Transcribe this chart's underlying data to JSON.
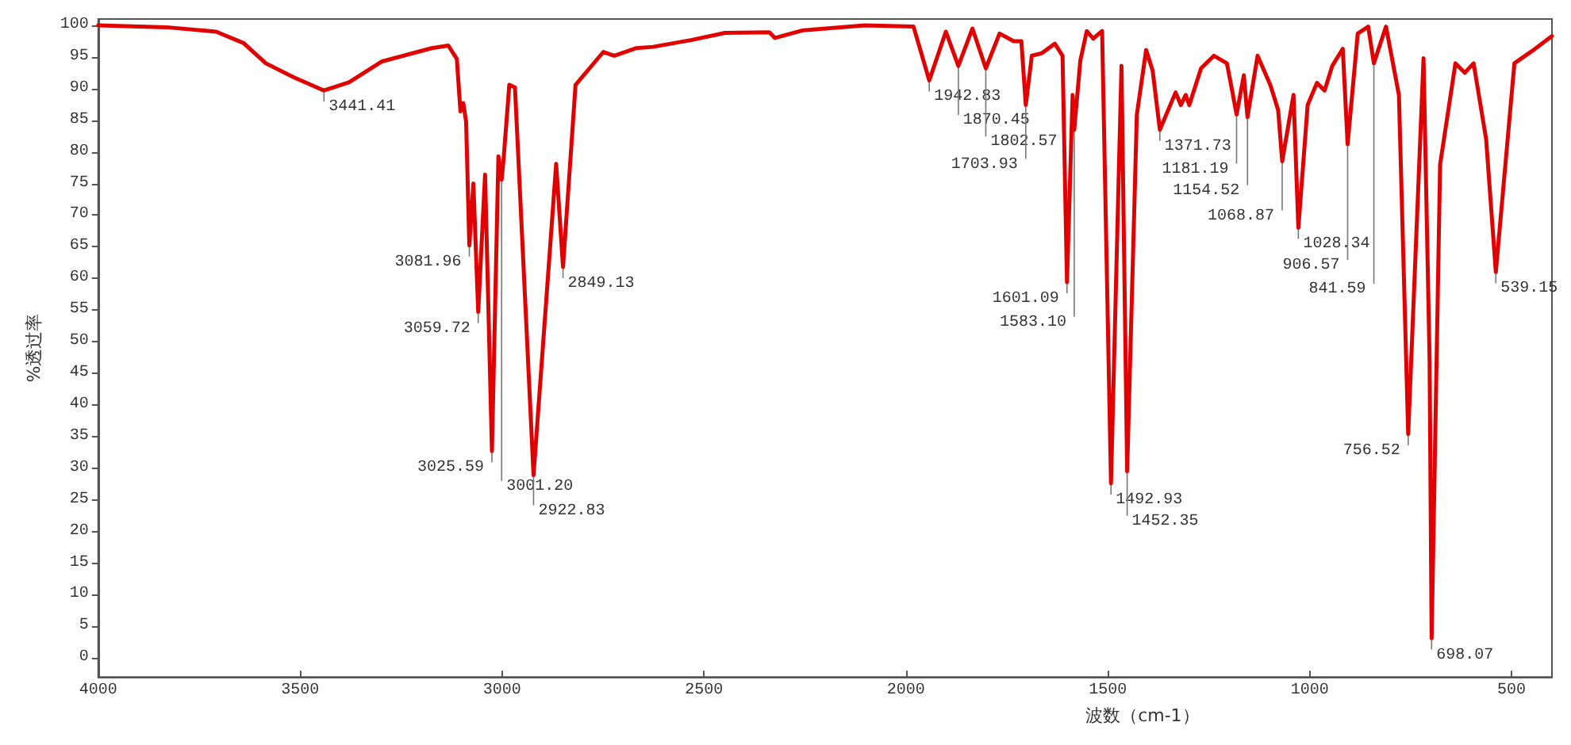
{
  "chart_data": {
    "type": "line",
    "xlabel": "波数（cm-1）",
    "ylabel": "%透过率",
    "xlim": [
      4000,
      400
    ],
    "ylim": [
      -3,
      101
    ],
    "xticks": [
      4000,
      3500,
      3000,
      2500,
      2000,
      1500,
      1000,
      500
    ],
    "yticks": [
      0,
      5,
      10,
      15,
      20,
      25,
      30,
      35,
      40,
      45,
      50,
      55,
      60,
      65,
      70,
      75,
      80,
      85,
      90,
      95,
      100
    ],
    "grid": false,
    "marker": "none",
    "line_style": "solid",
    "x": [
      4000,
      3831,
      3708,
      3640,
      3585,
      3516,
      3441,
      3379,
      3297,
      3174,
      3133,
      3112,
      3103,
      3096,
      3089,
      3081,
      3071,
      3059,
      3042,
      3025,
      3009,
      3001,
      2996,
      2982,
      2968,
      2922,
      2866,
      2849,
      2818,
      2749,
      2722,
      2667,
      2626,
      2530,
      2448,
      2338,
      2324,
      2256,
      2102,
      1981,
      1942,
      1901,
      1870,
      1835,
      1802,
      1768,
      1733,
      1714,
      1703,
      1688,
      1663,
      1631,
      1612,
      1601,
      1587,
      1583,
      1568,
      1552,
      1536,
      1514,
      1492,
      1466,
      1452,
      1428,
      1405,
      1389,
      1371,
      1332,
      1319,
      1307,
      1298,
      1269,
      1237,
      1205,
      1192,
      1181,
      1163,
      1154,
      1129,
      1097,
      1078,
      1068,
      1040,
      1028,
      1005,
      982,
      963,
      944,
      918,
      906,
      881,
      855,
      841,
      811,
      779,
      756,
      718,
      703,
      698,
      677,
      639,
      616,
      594,
      563,
      539,
      493,
      448,
      400
    ],
    "series": [
      {
        "color": "#e00000",
        "values": [
          100,
          99.7,
          99,
          97.2,
          94,
          91.8,
          89.7,
          91,
          94.3,
          96.4,
          96.8,
          94.7,
          86.4,
          87.7,
          84.8,
          65.2,
          75,
          54.7,
          76.4,
          32.7,
          79.3,
          75.6,
          79,
          90.6,
          90.2,
          28.9,
          78.1,
          61.8,
          90.6,
          95.8,
          95.2,
          96.4,
          96.6,
          97.7,
          98.8,
          98.9,
          98,
          99.2,
          100,
          99.8,
          91.3,
          99,
          93.6,
          99.5,
          93.2,
          98.7,
          97.5,
          97.5,
          87.4,
          95.2,
          95.6,
          97.1,
          95.2,
          59.4,
          89,
          83.5,
          94.4,
          99.1,
          97.9,
          99.1,
          27.6,
          93.6,
          29.5,
          85.9,
          96.1,
          92.9,
          83.5,
          89.4,
          87.4,
          89,
          87.4,
          93.2,
          95.2,
          94,
          89.7,
          85.9,
          92.1,
          85.5,
          95.2,
          90.5,
          86.6,
          78.5,
          89,
          68,
          87.4,
          90.9,
          89.7,
          93.6,
          96.3,
          81.2,
          98.7,
          99.8,
          94,
          99.8,
          89,
          35.4,
          94.8,
          47,
          3.1,
          78,
          94,
          92.5,
          94,
          82,
          61,
          94,
          96,
          98.3
        ]
      }
    ],
    "annotations": [
      {
        "text": "3441.41",
        "x": 3441,
        "y": 89.7
      },
      {
        "text": "3081.96",
        "x": 3081,
        "y": 65.2
      },
      {
        "text": "3059.72",
        "x": 3059,
        "y": 54.7
      },
      {
        "text": "3025.59",
        "x": 3025,
        "y": 32.7
      },
      {
        "text": "3001.20",
        "x": 3001,
        "y": 75.6
      },
      {
        "text": "2922.83",
        "x": 2922,
        "y": 28.9
      },
      {
        "text": "2849.13",
        "x": 2849,
        "y": 61.8
      },
      {
        "text": "1942.83",
        "x": 1942,
        "y": 91.3
      },
      {
        "text": "1870.45",
        "x": 1870,
        "y": 93.6
      },
      {
        "text": "1802.57",
        "x": 1802,
        "y": 93.2
      },
      {
        "text": "1703.93",
        "x": 1703,
        "y": 87.4
      },
      {
        "text": "1601.09",
        "x": 1601,
        "y": 59.4
      },
      {
        "text": "1583.10",
        "x": 1583,
        "y": 83.5
      },
      {
        "text": "1492.93",
        "x": 1492,
        "y": 27.6
      },
      {
        "text": "1452.35",
        "x": 1452,
        "y": 29.5
      },
      {
        "text": "1371.73",
        "x": 1371,
        "y": 83.5
      },
      {
        "text": "1181.19",
        "x": 1181,
        "y": 85.9
      },
      {
        "text": "1154.52",
        "x": 1154,
        "y": 85.5
      },
      {
        "text": "1068.87",
        "x": 1068,
        "y": 78.5
      },
      {
        "text": "1028.34",
        "x": 1028,
        "y": 68
      },
      {
        "text": "906.57",
        "x": 906,
        "y": 81.2
      },
      {
        "text": "841.59",
        "x": 841,
        "y": 94
      },
      {
        "text": "756.52",
        "x": 756,
        "y": 35.4
      },
      {
        "text": "698.07",
        "x": 698,
        "y": 3.1
      },
      {
        "text": "539.15",
        "x": 539,
        "y": 61
      }
    ]
  }
}
